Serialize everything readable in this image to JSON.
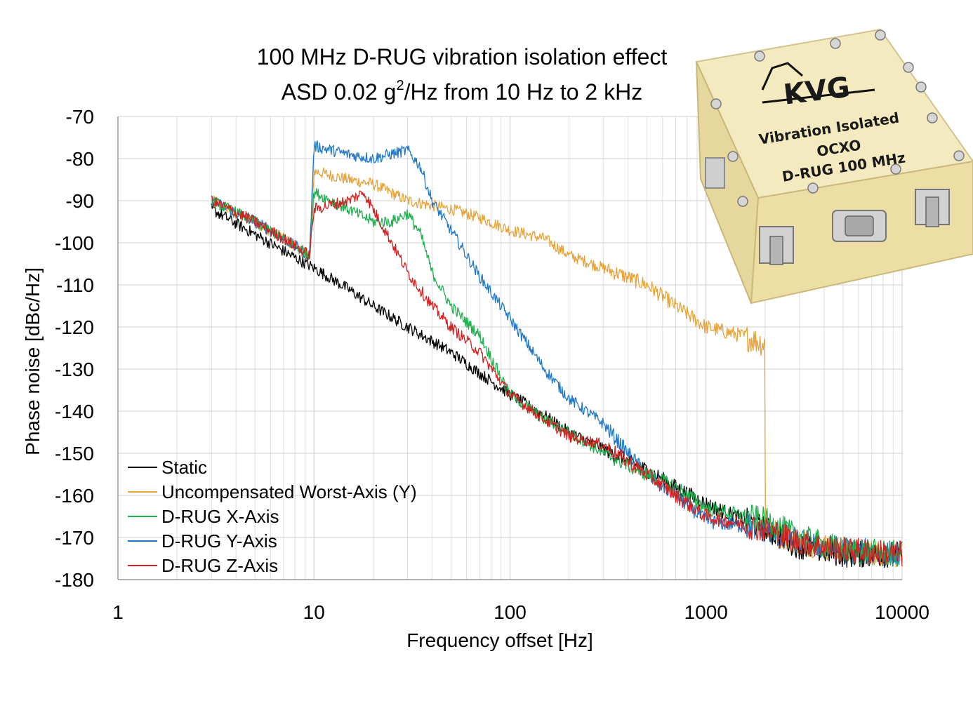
{
  "chart_data": {
    "type": "line",
    "title_line1": "100 MHz D-RUG vibration isolation effect",
    "title_line2_pre": "ASD 0.02 g",
    "title_line2_sup": "2",
    "title_line2_post": "/Hz from 10 Hz to 2 kHz",
    "xlabel": "Frequency offset [Hz]",
    "ylabel": "Phase noise [dBc/Hz]",
    "x_scale": "log",
    "xlim": [
      1,
      10000
    ],
    "ylim": [
      -180,
      -70
    ],
    "x_ticks": [
      "1",
      "10",
      "100",
      "1000",
      "10000"
    ],
    "y_ticks": [
      "-70",
      "-80",
      "-90",
      "-100",
      "-110",
      "-120",
      "-130",
      "-140",
      "-150",
      "-160",
      "-170",
      "-180"
    ],
    "grid": true,
    "legend_position": "bottom-left",
    "series": [
      {
        "name": "Static",
        "color": "#000000",
        "x": [
          3,
          5,
          7,
          10,
          15,
          20,
          30,
          50,
          70,
          100,
          150,
          200,
          300,
          500,
          700,
          1000,
          2000,
          3000,
          5000,
          10000
        ],
        "y": [
          -92,
          -98,
          -102,
          -106,
          -111,
          -115,
          -120,
          -126,
          -131,
          -136,
          -141,
          -145,
          -149,
          -154,
          -158,
          -162,
          -168,
          -172,
          -174,
          -174
        ]
      },
      {
        "name": "Uncompensated Worst-Axis (Y)",
        "color": "#e8a33a",
        "x": [
          3,
          5,
          7,
          9.5,
          10,
          15,
          20,
          30,
          50,
          70,
          100,
          150,
          200,
          300,
          500,
          700,
          1000,
          1500,
          2000,
          2001,
          3000,
          5000,
          10000
        ],
        "y": [
          -90,
          -95,
          -99,
          -103,
          -83,
          -85,
          -86,
          -90,
          -92,
          -94,
          -97,
          -99,
          -103,
          -106,
          -110,
          -115,
          -120,
          -122,
          -124,
          -168,
          -171,
          -173,
          -174
        ]
      },
      {
        "name": "D-RUG X-Axis",
        "color": "#1fb14d",
        "x": [
          3,
          5,
          7,
          9.5,
          10,
          15,
          20,
          25,
          30,
          35,
          40,
          50,
          70,
          100,
          150,
          200,
          300,
          500,
          700,
          1000,
          2000,
          3000,
          5000,
          10000
        ],
        "y": [
          -90,
          -95,
          -99,
          -103,
          -88,
          -92,
          -95,
          -95,
          -93,
          -98,
          -107,
          -115,
          -122,
          -136,
          -142,
          -145,
          -150,
          -155,
          -158,
          -163,
          -166,
          -170,
          -173,
          -174
        ]
      },
      {
        "name": "D-RUG Y-Axis",
        "color": "#1f78c8",
        "x": [
          3,
          5,
          7,
          9.5,
          10,
          15,
          20,
          30,
          35,
          40,
          50,
          70,
          100,
          150,
          200,
          300,
          400,
          500,
          700,
          1000,
          2000,
          3000,
          5000,
          10000
        ],
        "y": [
          -90,
          -95,
          -99,
          -103,
          -77,
          -79,
          -80,
          -78,
          -82,
          -90,
          -97,
          -108,
          -118,
          -130,
          -137,
          -143,
          -150,
          -155,
          -160,
          -166,
          -168,
          -171,
          -173,
          -174
        ]
      },
      {
        "name": "D-RUG Z-Axis",
        "color": "#d42020",
        "x": [
          3,
          5,
          7,
          9.5,
          10,
          15,
          18,
          20,
          25,
          30,
          40,
          50,
          70,
          100,
          150,
          200,
          300,
          500,
          700,
          1000,
          2000,
          3000,
          5000,
          10000
        ],
        "y": [
          -90,
          -95,
          -99,
          -103,
          -92,
          -90,
          -88,
          -92,
          -100,
          -107,
          -115,
          -120,
          -126,
          -136,
          -142,
          -146,
          -148,
          -155,
          -160,
          -165,
          -168,
          -171,
          -173,
          -174
        ]
      }
    ]
  },
  "product_image": {
    "brand": "KVG",
    "line1": "Vibration Isolated",
    "line2": "OCXO",
    "line3": "D-RUG 100 MHz"
  }
}
